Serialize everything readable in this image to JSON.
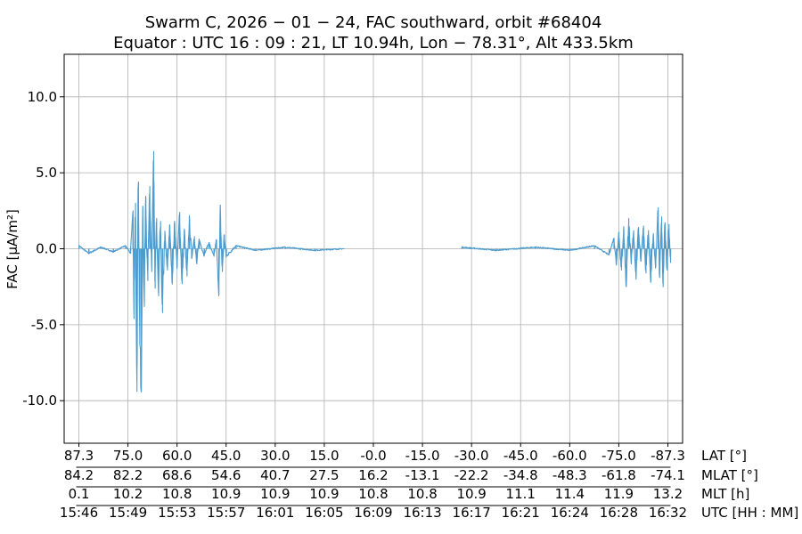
{
  "chart_data": {
    "type": "line",
    "title_line1": "Swarm C,  2026 − 01 − 24,  FAC southward,  orbit #68404",
    "title_line2": "Equator :  UTC 16 : 09 : 21,  LT 10.94h,  Lon  − 78.31°,  Alt 433.5km",
    "ylabel": "FAC [μA/m²]",
    "ylim": [
      -12.8,
      12.8
    ],
    "xlim": [
      -0.3,
      12.3
    ],
    "ytick_values": [
      10,
      5,
      0,
      -5,
      -10
    ],
    "ytick_labels": [
      "10.0",
      "5.0",
      "0.0",
      "-5.0",
      "-10.0"
    ],
    "xtick_positions": [
      0,
      1,
      2,
      3,
      4,
      5,
      6,
      7,
      8,
      9,
      10,
      11,
      12
    ],
    "rows": [
      {
        "name": "LAT [°]",
        "labels": [
          "87.3",
          "75.0",
          "60.0",
          "45.0",
          "30.0",
          "15.0",
          "-0.0",
          "-15.0",
          "-30.0",
          "-45.0",
          "-60.0",
          "-75.0",
          "-87.3"
        ]
      },
      {
        "name": "MLAT [°]",
        "labels": [
          "84.2",
          "82.2",
          "68.6",
          "54.6",
          "40.7",
          "27.5",
          "16.2",
          "-13.1",
          "-22.2",
          "-34.8",
          "-48.3",
          "-61.8",
          "-74.1"
        ]
      },
      {
        "name": "MLT [h]",
        "labels": [
          "0.1",
          "10.2",
          "10.8",
          "10.9",
          "10.9",
          "10.9",
          "10.8",
          "10.8",
          "10.9",
          "11.1",
          "11.4",
          "11.9",
          "13.2"
        ]
      },
      {
        "name": "UTC [HH : MM]",
        "labels": [
          "15:46",
          "15:49",
          "15:53",
          "15:57",
          "16:01",
          "16:05",
          "16:09",
          "16:13",
          "16:17",
          "16:21",
          "16:24",
          "16:28",
          "16:32"
        ]
      }
    ],
    "series": [
      {
        "name": "FAC",
        "color": "#4c9ccf",
        "segments": [
          {
            "x_start": 0.0,
            "x_end": 5.4,
            "anchors": [
              [
                0.0,
                0.2
              ],
              [
                0.2,
                -0.3
              ],
              [
                0.45,
                0.1
              ],
              [
                0.7,
                -0.2
              ],
              [
                0.95,
                0.2
              ],
              [
                1.05,
                -0.3
              ],
              [
                1.1,
                2.5
              ],
              [
                1.12,
                -4.6
              ],
              [
                1.15,
                3.0
              ],
              [
                1.18,
                -9.4
              ],
              [
                1.21,
                4.4
              ],
              [
                1.24,
                -6.3
              ],
              [
                1.27,
                -8.9
              ],
              [
                1.3,
                2.8
              ],
              [
                1.33,
                -3.8
              ],
              [
                1.36,
                3.4
              ],
              [
                1.4,
                -2.1
              ],
              [
                1.44,
                4.1
              ],
              [
                1.48,
                -1.5
              ],
              [
                1.52,
                6.4
              ],
              [
                1.55,
                -2.6
              ],
              [
                1.58,
                2.0
              ],
              [
                1.62,
                -3.1
              ],
              [
                1.66,
                1.8
              ],
              [
                1.7,
                -4.2
              ],
              [
                1.75,
                1.1
              ],
              [
                1.8,
                -1.4
              ],
              [
                1.85,
                1.5
              ],
              [
                1.9,
                -2.2
              ],
              [
                1.95,
                1.7
              ],
              [
                2.0,
                -1.2
              ],
              [
                2.05,
                2.4
              ],
              [
                2.1,
                -2.3
              ],
              [
                2.15,
                1.2
              ],
              [
                2.2,
                -1.8
              ],
              [
                2.25,
                1.9
              ],
              [
                2.3,
                -0.6
              ],
              [
                2.35,
                0.8
              ],
              [
                2.4,
                -1.0
              ],
              [
                2.45,
                0.6
              ],
              [
                2.55,
                -0.4
              ],
              [
                2.65,
                0.4
              ],
              [
                2.75,
                -0.5
              ],
              [
                2.8,
                0.6
              ],
              [
                2.85,
                -3.0
              ],
              [
                2.88,
                2.5
              ],
              [
                2.92,
                -1.5
              ],
              [
                2.96,
                0.9
              ],
              [
                3.0,
                -0.5
              ],
              [
                3.2,
                0.2
              ],
              [
                3.6,
                -0.1
              ],
              [
                4.2,
                0.1
              ],
              [
                4.8,
                -0.1
              ],
              [
                5.4,
                0.0
              ]
            ]
          },
          {
            "x_start": 7.8,
            "x_end": 12.05,
            "anchors": [
              [
                7.8,
                0.1
              ],
              [
                8.5,
                -0.1
              ],
              [
                9.3,
                0.1
              ],
              [
                10.0,
                -0.1
              ],
              [
                10.5,
                0.2
              ],
              [
                10.8,
                -0.4
              ],
              [
                10.9,
                0.7
              ],
              [
                10.95,
                -1.0
              ],
              [
                11.0,
                1.1
              ],
              [
                11.05,
                -1.4
              ],
              [
                11.1,
                1.3
              ],
              [
                11.15,
                -2.5
              ],
              [
                11.2,
                2.0
              ],
              [
                11.25,
                -1.0
              ],
              [
                11.3,
                1.2
              ],
              [
                11.35,
                -1.9
              ],
              [
                11.4,
                1.4
              ],
              [
                11.45,
                -0.8
              ],
              [
                11.5,
                1.5
              ],
              [
                11.55,
                -1.6
              ],
              [
                11.6,
                1.2
              ],
              [
                11.65,
                -2.2
              ],
              [
                11.7,
                1.0
              ],
              [
                11.75,
                -1.2
              ],
              [
                11.8,
                2.7
              ],
              [
                11.83,
                -1.9
              ],
              [
                11.87,
                2.1
              ],
              [
                11.9,
                -2.5
              ],
              [
                11.94,
                1.7
              ],
              [
                11.98,
                -1.4
              ],
              [
                12.02,
                1.6
              ],
              [
                12.05,
                -0.9
              ]
            ]
          }
        ]
      }
    ]
  }
}
